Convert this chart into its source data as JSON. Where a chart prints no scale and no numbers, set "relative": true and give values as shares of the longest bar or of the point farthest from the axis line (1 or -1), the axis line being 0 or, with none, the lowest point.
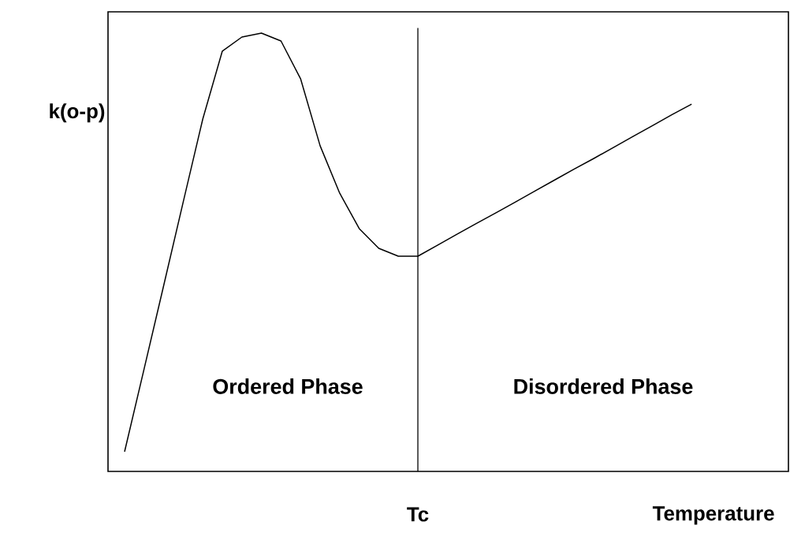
{
  "chart_data": {
    "type": "line",
    "relative": true,
    "ylabel": "k(o-p)",
    "xlabel": "Temperature",
    "categories": [
      null,
      null,
      null,
      null,
      null,
      null,
      null,
      null,
      null,
      null,
      null,
      null,
      null,
      null,
      null,
      null,
      null,
      null,
      null,
      null,
      null,
      null,
      null,
      null,
      null,
      null,
      null,
      null,
      null,
      null
    ],
    "series": [
      {
        "color": "#000000",
        "values": [
          0.045,
          0.234,
          0.424,
          0.615,
          0.804,
          0.959,
          0.991,
          1.0,
          0.982,
          0.896,
          0.743,
          0.635,
          0.554,
          0.509,
          0.491,
          0.491,
          0.516,
          0.541,
          0.566,
          0.59,
          0.615,
          0.64,
          0.665,
          0.69,
          0.714,
          0.739,
          0.764,
          0.789,
          0.814,
          0.838
        ]
      }
    ],
    "annotations": [
      "**Ordered Phase**",
      "**Disordered Phase**",
      "Tc"
    ]
  }
}
